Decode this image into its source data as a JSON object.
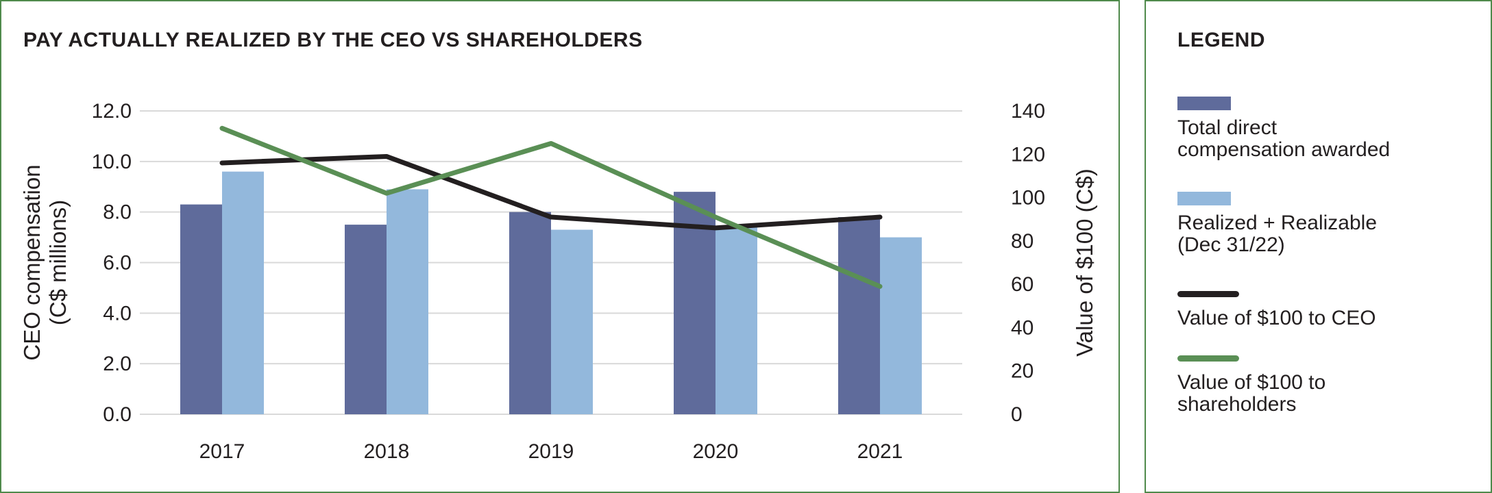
{
  "chart_data": {
    "type": "bar+line",
    "title": "PAY ACTUALLY REALIZED BY THE CEO VS SHAREHOLDERS",
    "categories": [
      "2017",
      "2018",
      "2019",
      "2020",
      "2021"
    ],
    "y_left": {
      "label_lines": [
        "CEO compensation",
        "(C$ millions)"
      ],
      "ylim": [
        0,
        12
      ],
      "ticks": [
        "0.0",
        "2.0",
        "4.0",
        "6.0",
        "8.0",
        "10.0",
        "12.0"
      ]
    },
    "y_right": {
      "label": "Value of $100 (C$)",
      "ylim": [
        0,
        140
      ],
      "ticks": [
        "0",
        "20",
        "40",
        "60",
        "80",
        "100",
        "120",
        "140"
      ]
    },
    "bar_series": [
      {
        "name": "Total direct compensation awarded",
        "color": "#5f6b9b",
        "values": [
          8.3,
          7.5,
          8.0,
          8.8,
          7.8
        ]
      },
      {
        "name": "Realized + Realizable (Dec 31/22)",
        "color": "#93b8dc",
        "values": [
          9.6,
          8.9,
          7.3,
          7.4,
          7.0
        ]
      }
    ],
    "line_series": [
      {
        "name": "Value of $100 to CEO",
        "color": "#231f20",
        "axis": "right",
        "values": [
          116,
          119,
          91,
          86,
          91
        ]
      },
      {
        "name": "Value of $100 to shareholders",
        "color": "#5a8f55",
        "axis": "right",
        "values": [
          132,
          102,
          125,
          91,
          59
        ]
      }
    ],
    "grid": true
  },
  "legend": {
    "title": "LEGEND",
    "items": [
      {
        "kind": "bar",
        "color": "#5f6b9b",
        "lines": [
          "Total direct",
          "compensation awarded"
        ]
      },
      {
        "kind": "bar",
        "color": "#93b8dc",
        "lines": [
          "Realized + Realizable",
          "(Dec 31/22)"
        ]
      },
      {
        "kind": "line",
        "color": "#231f20",
        "lines": [
          "Value of $100 to CEO"
        ]
      },
      {
        "kind": "line",
        "color": "#5a8f55",
        "lines": [
          "Value of $100 to",
          "shareholders"
        ]
      }
    ]
  }
}
